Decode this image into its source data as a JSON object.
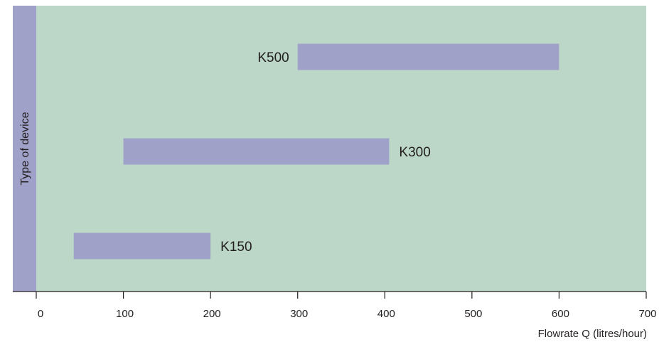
{
  "chart_data": {
    "type": "bar",
    "orientation": "horizontal-range",
    "title": "",
    "xlabel": "Flowrate Q (litres/hour)",
    "ylabel": "Type of device",
    "xlim": [
      0,
      700
    ],
    "xticks": [
      0,
      100,
      200,
      300,
      400,
      500,
      600,
      700
    ],
    "grid": false,
    "categories": [
      "K500",
      "K300",
      "K150"
    ],
    "ranges": [
      {
        "name": "K500",
        "start": 300,
        "end": 600
      },
      {
        "name": "K300",
        "start": 100,
        "end": 405
      },
      {
        "name": "K150",
        "start": 43,
        "end": 200
      }
    ],
    "label_side": [
      "left",
      "right",
      "right"
    ]
  },
  "colors": {
    "plot_background": "#bcd7c7",
    "bar": "#9fa1c9",
    "y_axis_band": "#9fa1c9",
    "axis": "#231f20",
    "text": "#231f20"
  }
}
